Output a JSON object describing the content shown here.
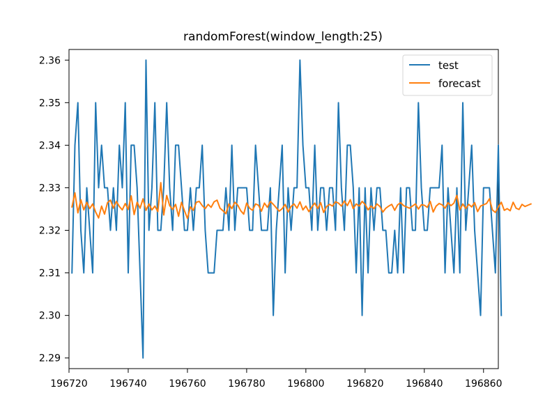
{
  "chart_data": {
    "type": "line",
    "title": "randomForest(window_length:25)",
    "xlabel": "",
    "ylabel": "",
    "xlim": [
      196720,
      196865
    ],
    "ylim": [
      2.2875,
      2.3625
    ],
    "x_ticks": [
      196720,
      196740,
      196760,
      196780,
      196800,
      196820,
      196840,
      196860
    ],
    "y_ticks": [
      2.29,
      2.3,
      2.31,
      2.32,
      2.33,
      2.34,
      2.35,
      2.36
    ],
    "x_tick_labels": [
      "196720",
      "196740",
      "196760",
      "196780",
      "196800",
      "196820",
      "196840",
      "196860"
    ],
    "y_tick_labels": [
      "2.29",
      "2.30",
      "2.31",
      "2.32",
      "2.33",
      "2.34",
      "2.35",
      "2.36"
    ],
    "grid": false,
    "legend": {
      "position": "top-right",
      "entries": [
        "test",
        "forecast"
      ]
    },
    "colors": {
      "test": "#1f77b4",
      "forecast": "#ff7f0e"
    },
    "x_start": 196721,
    "x_step": 1,
    "series": [
      {
        "name": "test",
        "color": "#1f77b4",
        "values": [
          2.31,
          2.34,
          2.35,
          2.32,
          2.31,
          2.33,
          2.32,
          2.31,
          2.35,
          2.33,
          2.34,
          2.33,
          2.33,
          2.32,
          2.33,
          2.32,
          2.34,
          2.33,
          2.35,
          2.31,
          2.34,
          2.34,
          2.33,
          2.31,
          2.29,
          2.36,
          2.32,
          2.33,
          2.35,
          2.32,
          2.32,
          2.33,
          2.35,
          2.33,
          2.32,
          2.34,
          2.34,
          2.33,
          2.32,
          2.32,
          2.33,
          2.32,
          2.33,
          2.33,
          2.34,
          2.32,
          2.31,
          2.31,
          2.31,
          2.32,
          2.32,
          2.32,
          2.33,
          2.32,
          2.34,
          2.32,
          2.33,
          2.33,
          2.33,
          2.33,
          2.32,
          2.32,
          2.34,
          2.33,
          2.32,
          2.32,
          2.32,
          2.33,
          2.3,
          2.32,
          2.33,
          2.34,
          2.31,
          2.33,
          2.32,
          2.33,
          2.33,
          2.36,
          2.34,
          2.33,
          2.33,
          2.32,
          2.34,
          2.32,
          2.33,
          2.33,
          2.32,
          2.33,
          2.33,
          2.32,
          2.35,
          2.33,
          2.32,
          2.34,
          2.34,
          2.33,
          2.31,
          2.33,
          2.3,
          2.33,
          2.31,
          2.33,
          2.32,
          2.33,
          2.33,
          2.32,
          2.32,
          2.31,
          2.31,
          2.32,
          2.31,
          2.33,
          2.31,
          2.33,
          2.33,
          2.32,
          2.32,
          2.35,
          2.33,
          2.32,
          2.32,
          2.33,
          2.33,
          2.33,
          2.33,
          2.34,
          2.31,
          2.33,
          2.32,
          2.31,
          2.33,
          2.31,
          2.35,
          2.32,
          2.33,
          2.34,
          2.32,
          2.31,
          2.3,
          2.33,
          2.33,
          2.33,
          2.32,
          2.31,
          2.34,
          2.3
        ]
      },
      {
        "name": "forecast",
        "color": "#ff7f0e",
        "values": [
          2.3255,
          2.3288,
          2.3241,
          2.3272,
          2.3248,
          2.3266,
          2.3251,
          2.3262,
          2.3243,
          2.3229,
          2.3257,
          2.3238,
          2.3265,
          2.3271,
          2.3252,
          2.3268,
          2.3256,
          2.3248,
          2.3263,
          2.3249,
          2.3281,
          2.3237,
          2.3266,
          2.3252,
          2.3274,
          2.3247,
          2.3262,
          2.3248,
          2.3257,
          2.3244,
          2.3312,
          2.3236,
          2.3282,
          2.3258,
          2.3249,
          2.3261,
          2.3233,
          2.3266,
          2.3246,
          2.3228,
          2.3255,
          2.3247,
          2.3266,
          2.3268,
          2.3258,
          2.3251,
          2.3261,
          2.3254,
          2.3267,
          2.3271,
          2.3252,
          2.3246,
          2.3239,
          2.3262,
          2.3251,
          2.3266,
          2.3259,
          2.3246,
          2.3238,
          2.3264,
          2.3252,
          2.3247,
          2.3262,
          2.3259,
          2.3245,
          2.3264,
          2.3254,
          2.3268,
          2.3261,
          2.3253,
          2.3245,
          2.3251,
          2.3261,
          2.3243,
          2.3256,
          2.3262,
          2.3252,
          2.3267,
          2.3248,
          2.3257,
          2.3244,
          2.3255,
          2.3264,
          2.3251,
          2.3265,
          2.3242,
          2.3256,
          2.3261,
          2.3257,
          2.3267,
          2.3264,
          2.3257,
          2.3269,
          2.3258,
          2.3272,
          2.3251,
          2.3262,
          2.3257,
          2.3268,
          2.3261,
          2.3248,
          2.3257,
          2.3251,
          2.3262,
          2.3256,
          2.3243,
          2.3252,
          2.3257,
          2.3261,
          2.3247,
          2.326,
          2.3265,
          2.3258,
          2.3255,
          2.3252,
          2.3257,
          2.3262,
          2.325,
          2.326,
          2.3259,
          2.3254,
          2.3268,
          2.3243,
          2.3257,
          2.3263,
          2.326,
          2.3252,
          2.3265,
          2.3258,
          2.3264,
          2.3282,
          2.3248,
          2.3262,
          2.3251,
          2.3261,
          2.3255,
          2.3265,
          2.3244,
          2.3257,
          2.326,
          2.3263,
          2.3274,
          2.3248,
          2.3242,
          2.3255,
          2.3266,
          2.3247,
          2.3251,
          2.3246,
          2.3266,
          2.3252,
          2.3249,
          2.3261,
          2.3256,
          2.3259,
          2.3262
        ]
      }
    ]
  }
}
